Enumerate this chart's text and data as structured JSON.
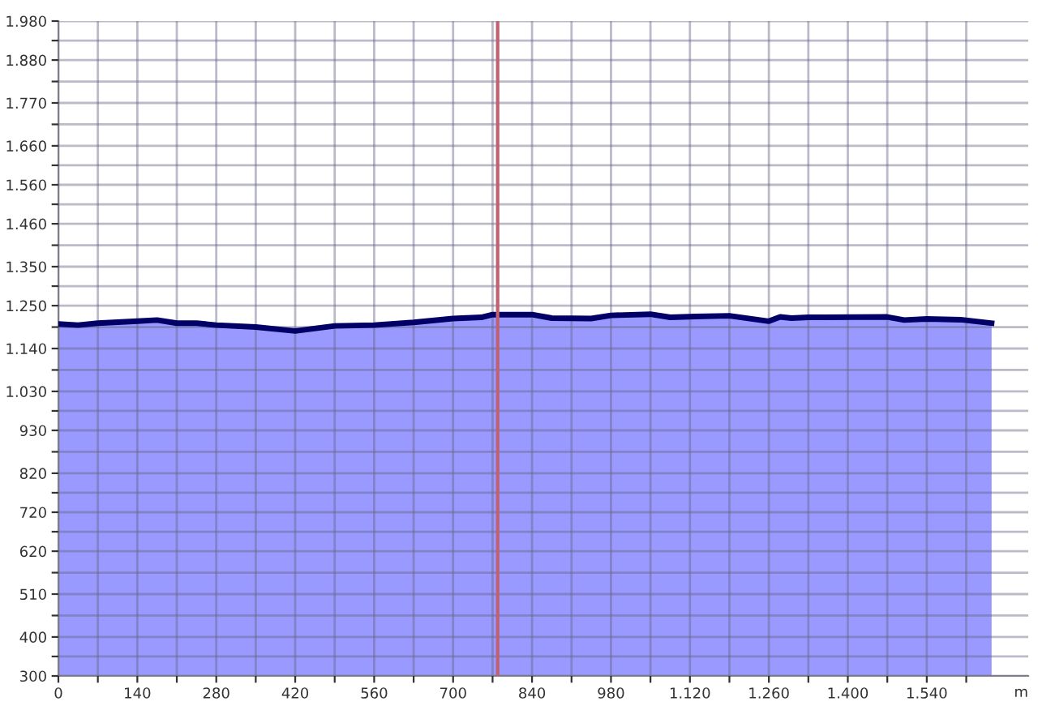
{
  "chart_data": {
    "type": "area",
    "xlabel": "m",
    "x": [
      0,
      35,
      70,
      140,
      175,
      210,
      245,
      280,
      350,
      420,
      490,
      560,
      630,
      700,
      750,
      770,
      840,
      875,
      945,
      980,
      1050,
      1085,
      1130,
      1190,
      1260,
      1280,
      1300,
      1330,
      1470,
      1500,
      1540,
      1600,
      1655
    ],
    "series": [
      {
        "color": "#9999ff",
        "values": [
          1203,
          1200,
          1205,
          1210,
          1213,
          1205,
          1205,
          1200,
          1195,
          1185,
          1198,
          1200,
          1207,
          1217,
          1220,
          1227,
          1227,
          1218,
          1217,
          1225,
          1228,
          1220,
          1222,
          1224,
          1210,
          1221,
          1218,
          1220,
          1221,
          1213,
          1216,
          1214,
          1205
        ]
      }
    ],
    "xlim": [
      0,
      1720
    ],
    "xticks": [
      0,
      {
        "value": 70,
        "label": null
      },
      140,
      {
        "value": 210,
        "label": null
      },
      280,
      {
        "value": 350,
        "label": null
      },
      420,
      {
        "value": 490,
        "label": null
      },
      560,
      {
        "value": 630,
        "label": null
      },
      700,
      {
        "value": 770,
        "label": null
      },
      840,
      {
        "value": 910,
        "label": null
      },
      980,
      {
        "value": 1050,
        "label": null
      },
      {
        "value": 1120,
        "label": "1.120"
      },
      {
        "value": 1190,
        "label": null
      },
      {
        "value": 1260,
        "label": "1.260"
      },
      {
        "value": 1330,
        "label": null
      },
      {
        "value": 1400,
        "label": "1.400"
      },
      {
        "value": 1470,
        "label": null
      },
      {
        "value": 1540,
        "label": "1.540"
      },
      {
        "value": 1610,
        "label": null
      }
    ],
    "ylim": [
      300,
      1980
    ],
    "yticks": [
      300,
      {
        "value": 350,
        "label": null
      },
      400,
      {
        "value": 455,
        "label": null
      },
      510,
      {
        "value": 565,
        "label": null
      },
      620,
      {
        "value": 670,
        "label": null
      },
      720,
      {
        "value": 770,
        "label": null
      },
      820,
      {
        "value": 875,
        "label": null
      },
      930,
      {
        "value": 980,
        "label": null
      },
      {
        "value": 1030,
        "label": "1.030"
      },
      {
        "value": 1085,
        "label": null
      },
      {
        "value": 1140,
        "label": "1.140"
      },
      {
        "value": 1195,
        "label": null
      },
      {
        "value": 1250,
        "label": "1.250"
      },
      {
        "value": 1300,
        "label": null
      },
      {
        "value": 1350,
        "label": "1.350"
      },
      {
        "value": 1405,
        "label": null
      },
      {
        "value": 1460,
        "label": "1.460"
      },
      {
        "value": 1510,
        "label": null
      },
      {
        "value": 1560,
        "label": "1.560"
      },
      {
        "value": 1610,
        "label": null
      },
      {
        "value": 1660,
        "label": "1.660"
      },
      {
        "value": 1715,
        "label": null
      },
      {
        "value": 1770,
        "label": "1.770"
      },
      {
        "value": 1825,
        "label": null
      },
      {
        "value": 1880,
        "label": "1.880"
      },
      {
        "value": 1930,
        "label": null
      },
      {
        "value": 1980,
        "label": "1.980"
      }
    ],
    "ref_lines": [
      {
        "axis": "x",
        "value": 779,
        "color": "#c06070"
      }
    ],
    "grid": true,
    "legend": false
  }
}
